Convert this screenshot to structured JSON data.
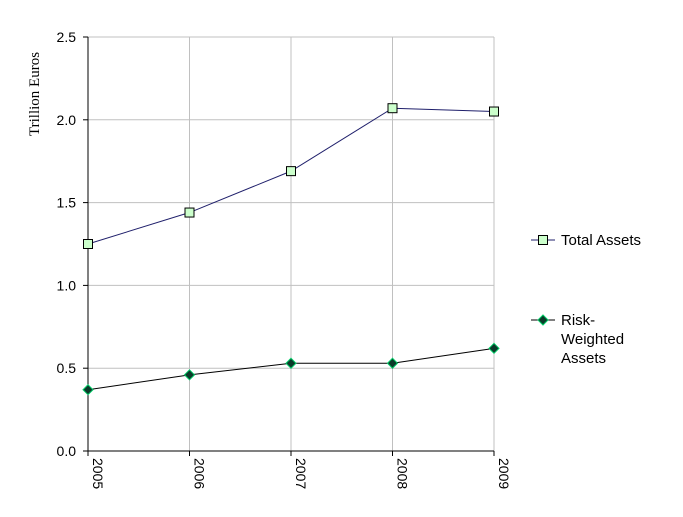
{
  "chart_data": {
    "type": "line",
    "x": [
      "2005",
      "2006",
      "2007",
      "2008",
      "2009"
    ],
    "ylabel": "Trillion Euros",
    "ylim": [
      0,
      2.5
    ],
    "y_ticks": [
      "0.0",
      "0.5",
      "1.0",
      "1.5",
      "2.0",
      "2.5"
    ],
    "grid": true,
    "legend_position": "right",
    "series": [
      {
        "name": "Total Assets",
        "legend_lines": [
          "Total Assets"
        ],
        "values": [
          1.25,
          1.44,
          1.69,
          2.07,
          2.05
        ],
        "line_color": "#1f1f6b",
        "marker": "square",
        "marker_fill": "#ccffcc",
        "marker_edge": "#000000"
      },
      {
        "name": "Risk-Weighted Assets",
        "legend_lines": [
          "Risk-",
          "Weighted",
          "Assets"
        ],
        "values": [
          0.37,
          0.46,
          0.53,
          0.53,
          0.62
        ],
        "line_color": "#000000",
        "marker": "diamond",
        "marker_fill": "#0b3b2a",
        "marker_edge": "#00cc66"
      }
    ]
  }
}
